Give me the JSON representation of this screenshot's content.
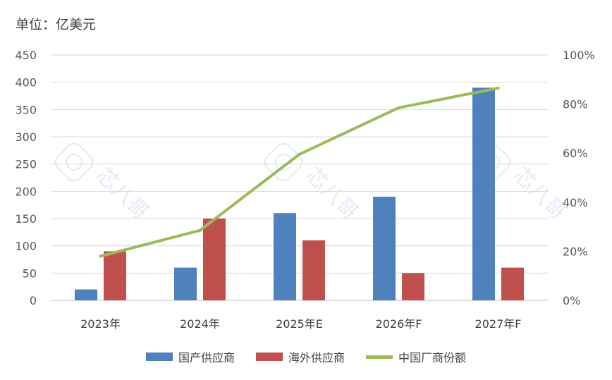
{
  "unit_label": "单位：亿美元",
  "colors": {
    "domestic": "#4f81bd",
    "overseas": "#c0504d",
    "share": "#9bbb59",
    "grid": "#d9d9d9"
  },
  "watermark_text": "芯八哥",
  "chart_data": {
    "type": "bar",
    "categories": [
      "2023年",
      "2024年",
      "2025年E",
      "2026年F",
      "2027年F"
    ],
    "series": [
      {
        "name": "国产供应商",
        "type": "bar",
        "axis": "left",
        "values": [
          20,
          60,
          160,
          190,
          390
        ]
      },
      {
        "name": "海外供应商",
        "type": "bar",
        "axis": "left",
        "values": [
          90,
          150,
          110,
          50,
          60
        ]
      },
      {
        "name": "中国厂商份额",
        "type": "line",
        "axis": "right",
        "values": [
          0.18,
          0.285,
          0.595,
          0.785,
          0.865
        ]
      }
    ],
    "ylim_left": [
      0,
      450
    ],
    "yticks_left": [
      "0",
      "50",
      "100",
      "150",
      "200",
      "250",
      "300",
      "350",
      "400",
      "450"
    ],
    "ylim_right": [
      0,
      1.0
    ],
    "yticks_right": [
      "0%",
      "20%",
      "40%",
      "60%",
      "80%",
      "100%"
    ],
    "grid": true,
    "legend_position": "bottom"
  }
}
